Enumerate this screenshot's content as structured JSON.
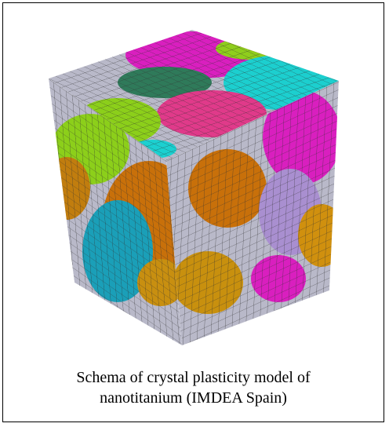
{
  "caption": {
    "line1": "Schema of crystal plasticity model of",
    "line2": "nanotitanium (IMDEA Spain)"
  }
}
